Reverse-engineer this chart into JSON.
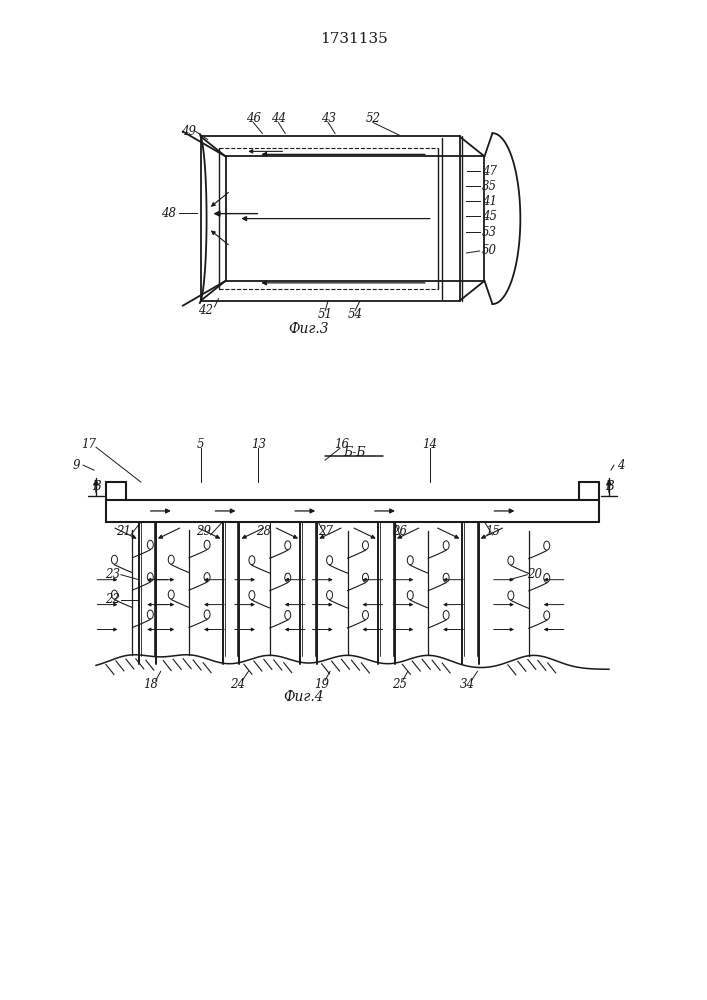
{
  "title": "1731135",
  "fig3_caption": "Фиг.3",
  "fig4_caption": "Фиг.4",
  "bg_color": "#ffffff",
  "line_color": "#1a1a1a"
}
